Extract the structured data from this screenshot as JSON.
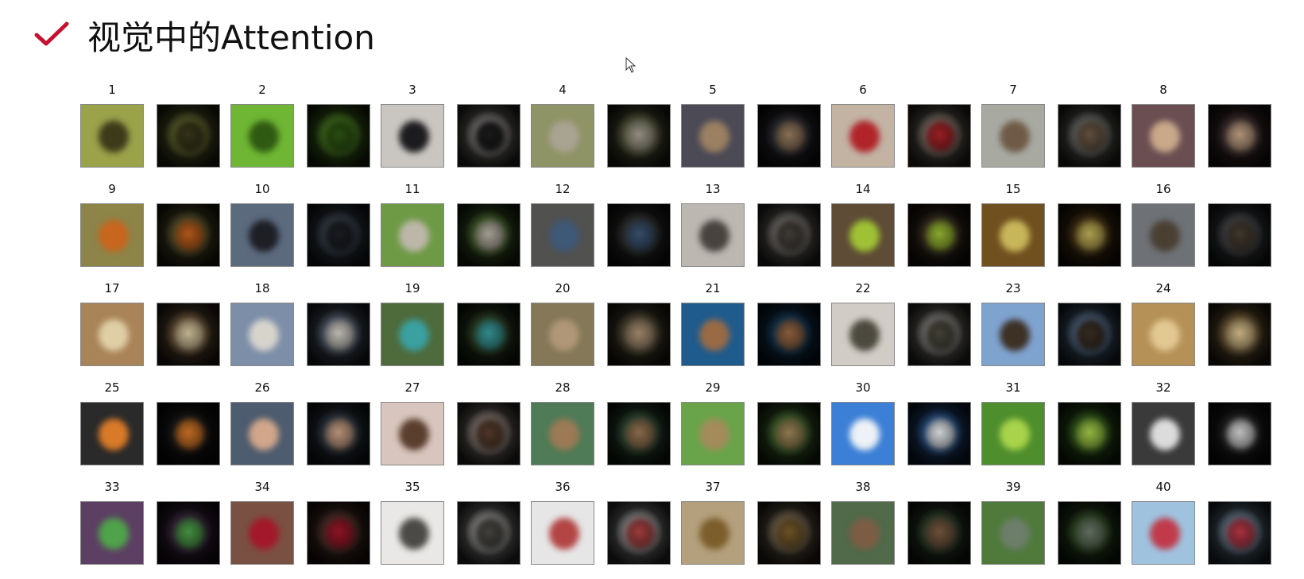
{
  "title": "视觉中的Attention",
  "icons": {
    "title_icon": "checkmark-icon",
    "cursor": "mouse-pointer-icon"
  },
  "colors": {
    "check": "#c8102e",
    "label": "#111111"
  },
  "items": [
    {
      "label": "1",
      "bg": "#9aa24a",
      "fg": "#3c3a1a"
    },
    {
      "label": "2",
      "bg": "#6fb634",
      "fg": "#2f5a12"
    },
    {
      "label": "3",
      "bg": "#c9c6c1",
      "fg": "#1c1c1e"
    },
    {
      "label": "4",
      "bg": "#8f9466",
      "fg": "#a9a392"
    },
    {
      "label": "5",
      "bg": "#4b4a55",
      "fg": "#9b8062"
    },
    {
      "label": "6",
      "bg": "#c2b3a3",
      "fg": "#b0242a"
    },
    {
      "label": "7",
      "bg": "#a8aaa2",
      "fg": "#6e5a46"
    },
    {
      "label": "8",
      "bg": "#6a4e52",
      "fg": "#c9a98a"
    },
    {
      "label": "9",
      "bg": "#8d8448",
      "fg": "#c8651e"
    },
    {
      "label": "10",
      "bg": "#5b6a7d",
      "fg": "#1e1f24"
    },
    {
      "label": "11",
      "bg": "#6e9a45",
      "fg": "#bdb7aa"
    },
    {
      "label": "12",
      "bg": "#51514f",
      "fg": "#3e5878"
    },
    {
      "label": "13",
      "bg": "#bcb7b1",
      "fg": "#48433e"
    },
    {
      "label": "14",
      "bg": "#5e4c36",
      "fg": "#9fc235"
    },
    {
      "label": "15",
      "bg": "#70501f",
      "fg": "#c8b65a"
    },
    {
      "label": "16",
      "bg": "#6e7277",
      "fg": "#4a3f33"
    },
    {
      "label": "17",
      "bg": "#a98459",
      "fg": "#e0cfa6"
    },
    {
      "label": "18",
      "bg": "#7c8ea8",
      "fg": "#d7d4cc"
    },
    {
      "label": "19",
      "bg": "#4e6b3c",
      "fg": "#3aa0a0"
    },
    {
      "label": "20",
      "bg": "#847858",
      "fg": "#b09777"
    },
    {
      "label": "21",
      "bg": "#1f5b8c",
      "fg": "#9a6a45"
    },
    {
      "label": "22",
      "bg": "#d2ccc7",
      "fg": "#4c4a3e"
    },
    {
      "label": "23",
      "bg": "#7fa3cf",
      "fg": "#3d3025"
    },
    {
      "label": "24",
      "bg": "#b59157",
      "fg": "#e2c892"
    },
    {
      "label": "25",
      "bg": "#2a2a2a",
      "fg": "#d97a28"
    },
    {
      "label": "26",
      "bg": "#4d5c6e",
      "fg": "#d1a68a"
    },
    {
      "label": "27",
      "bg": "#d8c5bd",
      "fg": "#5a3e2e"
    },
    {
      "label": "28",
      "bg": "#4f7b56",
      "fg": "#9c7a55"
    },
    {
      "label": "29",
      "bg": "#6aa44a",
      "fg": "#a38b5a"
    },
    {
      "label": "30",
      "bg": "#3b7fd6",
      "fg": "#eef2f6"
    },
    {
      "label": "31",
      "bg": "#4f8e2d",
      "fg": "#a8d34a"
    },
    {
      "label": "32",
      "bg": "#3a3a3a",
      "fg": "#dcdcdc"
    },
    {
      "label": "33",
      "bg": "#5c3f63",
      "fg": "#4fa34a"
    },
    {
      "label": "34",
      "bg": "#7a5043",
      "fg": "#a3182a"
    },
    {
      "label": "35",
      "bg": "#e9e8e6",
      "fg": "#4b4a46"
    },
    {
      "label": "36",
      "bg": "#e6e6e6",
      "fg": "#b34545"
    },
    {
      "label": "37",
      "bg": "#b4a07c",
      "fg": "#7c5e2c"
    },
    {
      "label": "38",
      "bg": "#506a4a",
      "fg": "#7c5d44"
    },
    {
      "label": "39",
      "bg": "#4f7a3c",
      "fg": "#6d7e6a"
    },
    {
      "label": "40",
      "bg": "#9fc3df",
      "fg": "#c03a4a"
    }
  ]
}
